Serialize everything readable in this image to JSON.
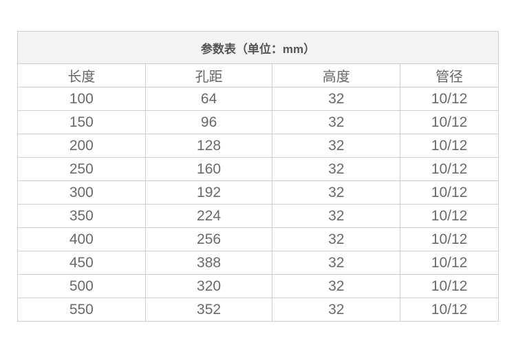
{
  "table": {
    "title": "参数表（单位：mm）",
    "headers": [
      "长度",
      "孔距",
      "高度",
      "管径"
    ],
    "rows": [
      [
        "100",
        "64",
        "32",
        "10/12"
      ],
      [
        "150",
        "96",
        "32",
        "10/12"
      ],
      [
        "200",
        "128",
        "32",
        "10/12"
      ],
      [
        "250",
        "160",
        "32",
        "10/12"
      ],
      [
        "300",
        "192",
        "32",
        "10/12"
      ],
      [
        "350",
        "224",
        "32",
        "10/12"
      ],
      [
        "400",
        "256",
        "32",
        "10/12"
      ],
      [
        "450",
        "388",
        "32",
        "10/12"
      ],
      [
        "500",
        "320",
        "32",
        "10/12"
      ],
      [
        "550",
        "352",
        "32",
        "10/12"
      ]
    ]
  },
  "colors": {
    "title_background": "#f3f3f3",
    "border": "#cfcfcf",
    "text": "#6a6a6a"
  }
}
